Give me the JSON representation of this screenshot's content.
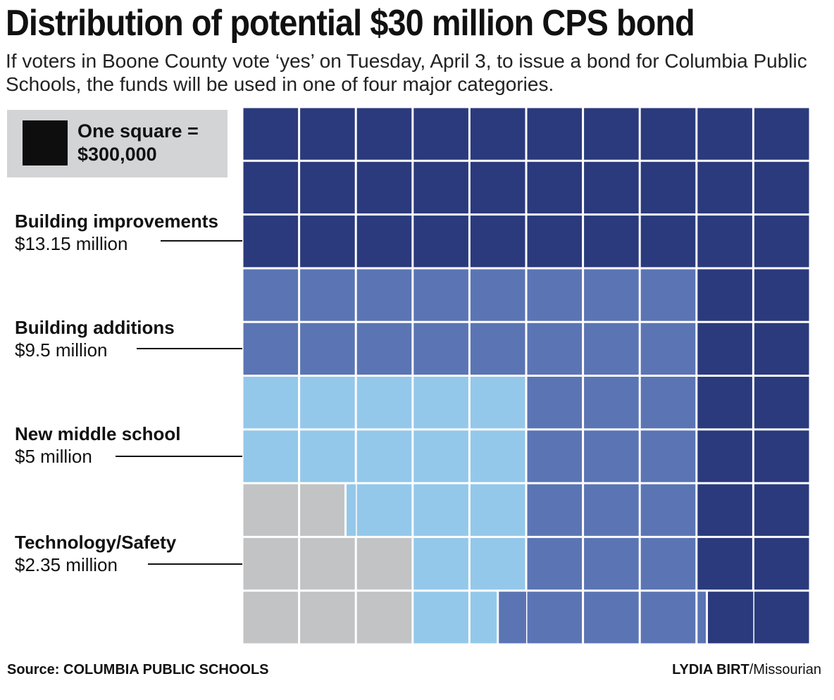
{
  "title": "Distribution of potential $30 million CPS bond",
  "subtitle": "If voters in Boone County vote ‘yes’ on Tuesday, April 3, to issue a bond for Columbia Public Schools, the funds will be used in one of four major categories.",
  "legend": {
    "text": "One square =\n$300,000",
    "swatch_color": "#0e0e0e"
  },
  "categories": [
    {
      "name": "Building improvements",
      "amount": "$13.15 million",
      "color": "#2a3a7c"
    },
    {
      "name": "Building additions",
      "amount": "$9.5 million",
      "color": "#5b74b4"
    },
    {
      "name": "New middle school",
      "amount": "$5 million",
      "color": "#94c8ea"
    },
    {
      "name": "Technology/Safety",
      "amount": "$2.35 million",
      "color": "#c2c3c5"
    }
  ],
  "chart_data": {
    "type": "waffle",
    "title": "Distribution of potential $30 million CPS bond",
    "unit_label": "One square = $300,000",
    "unit_value": 0.3,
    "total": 30,
    "grid": {
      "rows": 10,
      "cols": 10
    },
    "series": [
      {
        "name": "Building improvements",
        "value": 13.15,
        "color": "#2a3a7c"
      },
      {
        "name": "Building additions",
        "value": 9.5,
        "color": "#5b74b4"
      },
      {
        "name": "New middle school",
        "value": 5,
        "color": "#94c8ea"
      },
      {
        "name": "Technology/Safety",
        "value": 2.35,
        "color": "#c2c3c5"
      }
    ],
    "cell_assignment": [
      [
        0,
        0,
        0,
        0,
        0,
        0,
        0,
        0,
        0,
        0
      ],
      [
        0,
        0,
        0,
        0,
        0,
        0,
        0,
        0,
        0,
        0
      ],
      [
        0,
        0,
        0,
        0,
        0,
        0,
        0,
        0,
        0,
        0
      ],
      [
        1,
        1,
        1,
        1,
        1,
        1,
        1,
        1,
        0,
        0
      ],
      [
        1,
        1,
        1,
        1,
        1,
        1,
        1,
        1,
        0,
        0
      ],
      [
        2,
        2,
        2,
        2,
        2,
        1,
        1,
        1,
        0,
        0
      ],
      [
        2,
        2,
        2,
        2,
        2,
        1,
        1,
        1,
        0,
        0
      ],
      [
        3,
        3,
        2,
        2,
        2,
        1,
        1,
        1,
        0,
        0
      ],
      [
        3,
        3,
        3,
        2,
        2,
        1,
        1,
        1,
        0,
        0
      ],
      [
        3,
        3,
        3,
        2,
        2,
        1,
        1,
        1,
        0,
        0
      ]
    ],
    "fractional_cells": [
      {
        "row": 7,
        "col": 1,
        "segments": [
          {
            "series": 3,
            "fraction": 0.83
          },
          {
            "series": 2,
            "fraction": 0.17
          }
        ]
      },
      {
        "row": 9,
        "col": 4,
        "segments": [
          {
            "series": 2,
            "fraction": 0.5
          },
          {
            "series": 1,
            "fraction": 0.5
          }
        ]
      },
      {
        "row": 9,
        "col": 8,
        "segments": [
          {
            "series": 1,
            "fraction": 0.17
          },
          {
            "series": 0,
            "fraction": 0.83
          }
        ]
      }
    ]
  },
  "source": "Source: COLUMBIA PUBLIC SCHOOLS",
  "credit": {
    "author": "LYDIA BIRT",
    "outlet": "/Missourian"
  }
}
